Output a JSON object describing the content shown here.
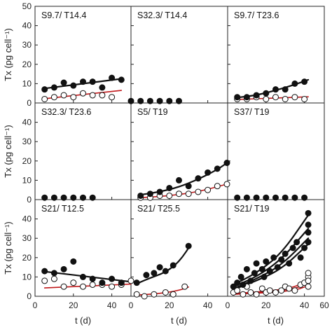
{
  "chart_data": {
    "type": "scatter",
    "layout": {
      "rows": 3,
      "cols": 3
    },
    "ylabel": "Tx (pg cell⁻¹)",
    "xlabel": "t (d)",
    "ylim": [
      0,
      50
    ],
    "yticks": [
      0,
      10,
      20,
      30,
      40,
      50
    ],
    "xlim": [
      0,
      60
    ],
    "xticks_panel": [
      0,
      20,
      40
    ],
    "xtick_end": 60,
    "series_colors": {
      "filled": "#111111",
      "open": "#ffffff",
      "fit_filled": "#111111",
      "fit_open": "#c0191b"
    },
    "panels": [
      {
        "label": "S9.7/ T14.4",
        "filled": [
          [
            5,
            7
          ],
          [
            10,
            8
          ],
          [
            15,
            10.5
          ],
          [
            20,
            9
          ],
          [
            25,
            11
          ],
          [
            30,
            11
          ],
          [
            35,
            8
          ],
          [
            40,
            13
          ],
          [
            45,
            12
          ]
        ],
        "open": [
          [
            5,
            2
          ],
          [
            10,
            3
          ],
          [
            15,
            4
          ],
          [
            20,
            3
          ],
          [
            25,
            5
          ],
          [
            30,
            4
          ],
          [
            35,
            4
          ],
          [
            40,
            3
          ]
        ],
        "fit_filled": [
          [
            5,
            7.5
          ],
          [
            45,
            12.5
          ]
        ],
        "fit_open": [
          [
            5,
            2.2
          ],
          [
            45,
            6.5
          ]
        ]
      },
      {
        "label": "S32.3/ T14.4",
        "filled": [
          [
            0,
            1
          ],
          [
            5,
            1
          ],
          [
            10,
            1
          ],
          [
            15,
            1
          ],
          [
            20,
            1
          ],
          [
            25,
            1
          ]
        ],
        "open": [],
        "fit_filled": [],
        "fit_open": []
      },
      {
        "label": "S9.7/ T23.6",
        "filled": [
          [
            5,
            3
          ],
          [
            10,
            3
          ],
          [
            15,
            4
          ],
          [
            20,
            5
          ],
          [
            25,
            7
          ],
          [
            30,
            7
          ],
          [
            35,
            10
          ],
          [
            40,
            11
          ]
        ],
        "open": [
          [
            5,
            2
          ],
          [
            10,
            2
          ],
          [
            15,
            3
          ],
          [
            20,
            2
          ],
          [
            25,
            3
          ],
          [
            30,
            2
          ],
          [
            35,
            3
          ],
          [
            40,
            2
          ]
        ],
        "fit_filled": [
          [
            5,
            2.8
          ],
          [
            15,
            4
          ],
          [
            25,
            6.5
          ],
          [
            35,
            9.5
          ],
          [
            42,
            12
          ]
        ],
        "fit_open": [
          [
            5,
            1.8
          ],
          [
            42,
            3.2
          ]
        ]
      },
      {
        "label": "S32.3/ T23.6",
        "filled": [
          [
            5,
            1
          ],
          [
            10,
            1
          ],
          [
            15,
            1
          ],
          [
            20,
            1
          ],
          [
            25,
            1
          ],
          [
            30,
            1
          ]
        ],
        "open": [],
        "fit_filled": [],
        "fit_open": []
      },
      {
        "label": "S5/ T19",
        "filled": [
          [
            5,
            2
          ],
          [
            10,
            3
          ],
          [
            15,
            4
          ],
          [
            20,
            6
          ],
          [
            25,
            10
          ],
          [
            30,
            7
          ],
          [
            35,
            11
          ],
          [
            40,
            14
          ],
          [
            45,
            16
          ],
          [
            50,
            19
          ]
        ],
        "open": [
          [
            5,
            1
          ],
          [
            10,
            1
          ],
          [
            15,
            2
          ],
          [
            20,
            2
          ],
          [
            25,
            3
          ],
          [
            30,
            3
          ],
          [
            35,
            4
          ],
          [
            40,
            5
          ],
          [
            45,
            7
          ],
          [
            50,
            8
          ]
        ],
        "fit_filled": [
          [
            5,
            2.5
          ],
          [
            15,
            4
          ],
          [
            25,
            6.5
          ],
          [
            35,
            10.5
          ],
          [
            45,
            15.5
          ],
          [
            50,
            19
          ]
        ],
        "fit_open": [
          [
            5,
            1
          ],
          [
            20,
            2
          ],
          [
            35,
            4
          ],
          [
            50,
            8
          ]
        ]
      },
      {
        "label": "S37/ T19",
        "filled": [
          [
            5,
            1
          ],
          [
            10,
            1
          ],
          [
            15,
            1
          ],
          [
            20,
            1
          ],
          [
            25,
            1
          ],
          [
            30,
            1
          ],
          [
            35,
            1
          ],
          [
            40,
            1
          ]
        ],
        "open": [],
        "fit_filled": [],
        "fit_open": []
      },
      {
        "label": "S21/ T12.5",
        "filled": [
          [
            5,
            13
          ],
          [
            10,
            12
          ],
          [
            15,
            14
          ],
          [
            20,
            18
          ],
          [
            25,
            10
          ],
          [
            30,
            9
          ],
          [
            35,
            7
          ],
          [
            40,
            9
          ],
          [
            45,
            7
          ]
        ],
        "open": [
          [
            5,
            8
          ],
          [
            10,
            9
          ],
          [
            15,
            5
          ],
          [
            20,
            7
          ],
          [
            25,
            5
          ],
          [
            30,
            6
          ],
          [
            35,
            6
          ],
          [
            40,
            5
          ],
          [
            45,
            6
          ],
          [
            50,
            8
          ]
        ],
        "fit_filled": [
          [
            5,
            12.8
          ],
          [
            50,
            7.5
          ]
        ],
        "fit_open": [
          [
            5,
            4.3
          ],
          [
            50,
            6.3
          ]
        ]
      },
      {
        "label": "S21/ T25.5",
        "filled": [
          [
            3,
            7
          ],
          [
            8,
            11
          ],
          [
            12,
            12
          ],
          [
            15,
            15
          ],
          [
            18,
            13
          ],
          [
            22,
            16
          ],
          [
            30,
            26
          ]
        ],
        "open": [
          [
            3,
            1
          ],
          [
            7,
            0
          ],
          [
            12,
            1
          ],
          [
            18,
            2
          ],
          [
            22,
            1
          ],
          [
            28,
            5
          ]
        ],
        "fit_filled": [
          [
            3,
            6.5
          ],
          [
            10,
            9.5
          ],
          [
            17,
            12
          ],
          [
            23,
            16
          ],
          [
            27,
            20.5
          ],
          [
            30,
            25
          ]
        ],
        "fit_open": [
          [
            3,
            0.6
          ],
          [
            15,
            1.4
          ],
          [
            25,
            3
          ],
          [
            30,
            4.8
          ]
        ]
      },
      {
        "label": "S21/ T19",
        "filled": [
          [
            3,
            5
          ],
          [
            5,
            7
          ],
          [
            7,
            10
          ],
          [
            8,
            6
          ],
          [
            10,
            14
          ],
          [
            12,
            8
          ],
          [
            14,
            12
          ],
          [
            15,
            17
          ],
          [
            18,
            14
          ],
          [
            19,
            10
          ],
          [
            20,
            18
          ],
          [
            22,
            13
          ],
          [
            24,
            20
          ],
          [
            26,
            15
          ],
          [
            28,
            19
          ],
          [
            30,
            22
          ],
          [
            32,
            17
          ],
          [
            34,
            25
          ],
          [
            36,
            28
          ],
          [
            38,
            20
          ],
          [
            40,
            25
          ],
          [
            42,
            33
          ],
          [
            42,
            43
          ],
          [
            42,
            37
          ],
          [
            42,
            28
          ]
        ],
        "open": [
          [
            3,
            2
          ],
          [
            5,
            3
          ],
          [
            8,
            1
          ],
          [
            10,
            5
          ],
          [
            12,
            2
          ],
          [
            15,
            1
          ],
          [
            18,
            4
          ],
          [
            20,
            2
          ],
          [
            22,
            3
          ],
          [
            25,
            2
          ],
          [
            28,
            3
          ],
          [
            30,
            5
          ],
          [
            32,
            4
          ],
          [
            35,
            3
          ],
          [
            38,
            6
          ],
          [
            40,
            7
          ],
          [
            42,
            10
          ],
          [
            42,
            12
          ],
          [
            42,
            8
          ],
          [
            42,
            5
          ]
        ],
        "fit_filled": [
          [
            [
              3,
              6
            ],
            [
              15,
              12
            ],
            [
              28,
              22
            ],
            [
              42,
              42
            ]
          ],
          [
            [
              3,
              5
            ],
            [
              15,
              10
            ],
            [
              28,
              19
            ],
            [
              42,
              35
            ]
          ],
          [
            [
              3,
              4
            ],
            [
              15,
              9
            ],
            [
              28,
              16
            ],
            [
              42,
              30
            ]
          ],
          [
            [
              3,
              3.5
            ],
            [
              15,
              8
            ],
            [
              28,
              14
            ],
            [
              42,
              27
            ]
          ]
        ],
        "fit_open": [
          [
            [
              3,
              1.5
            ],
            [
              20,
              2.5
            ],
            [
              35,
              4.5
            ],
            [
              42,
              9
            ]
          ],
          [
            [
              3,
              1.2
            ],
            [
              20,
              2.2
            ],
            [
              35,
              3.8
            ],
            [
              42,
              7
            ]
          ],
          [
            [
              3,
              1
            ],
            [
              20,
              1.8
            ],
            [
              35,
              3
            ],
            [
              42,
              5.5
            ]
          ]
        ]
      }
    ]
  }
}
